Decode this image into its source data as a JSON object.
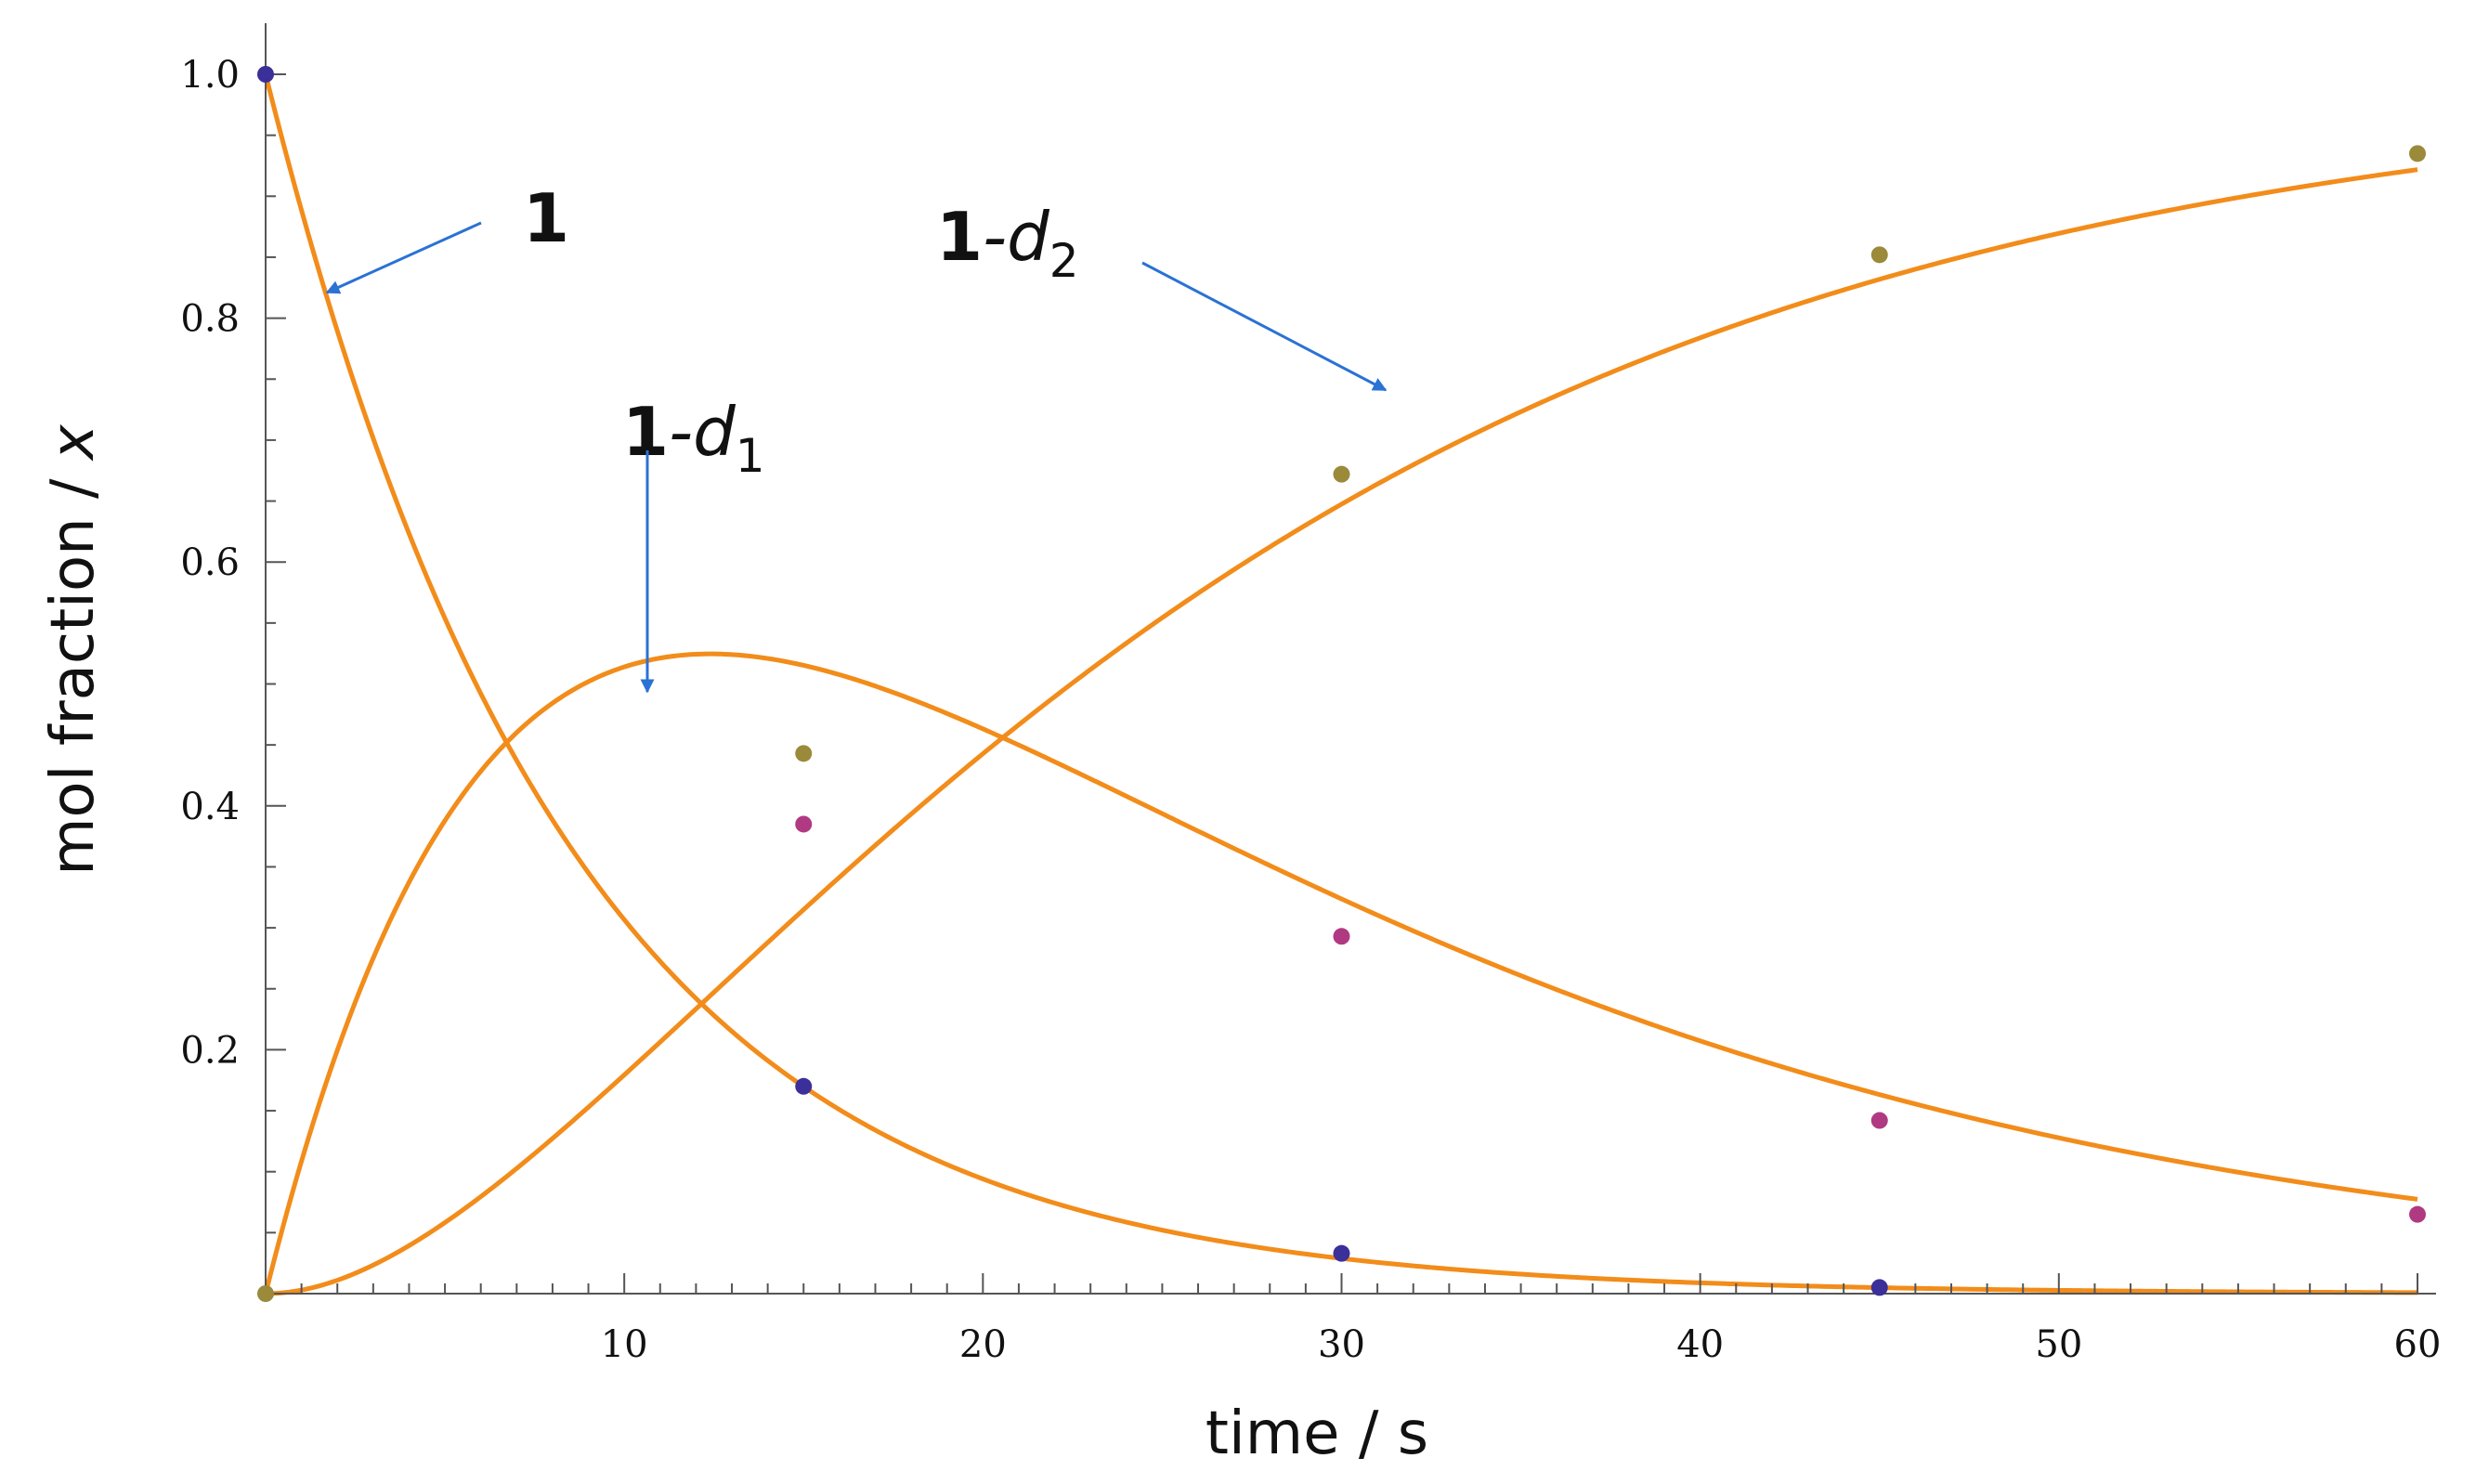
{
  "chart_data": {
    "type": "scatter",
    "xlabel": "time / s",
    "ylabel_text": "mol fraction / ",
    "ylabel_var": "x",
    "xlim": [
      0,
      60
    ],
    "ylim": [
      0,
      1.0
    ],
    "x_ticks": [
      10,
      20,
      30,
      40,
      50,
      60
    ],
    "y_ticks": [
      0.2,
      0.4,
      0.6,
      0.8,
      1.0
    ],
    "y_tick_labels": [
      "0.2",
      "0.4",
      "0.6",
      "0.8",
      "1.0"
    ],
    "x_tick_labels": [
      "10",
      "20",
      "30",
      "40",
      "50",
      "60"
    ],
    "x_minor_step": 1,
    "y_minor_step": 0.05,
    "grid": false,
    "fit_model": {
      "type": "sequential_first_order",
      "k1_per_s": 0.1182,
      "k2_per_s": 0.052
    },
    "series": [
      {
        "label_main": "1",
        "label_suffix": "",
        "label_sub": "",
        "marker_color": "#3b2f9a",
        "curve_color": "#f28c1a",
        "x": [
          0,
          15,
          30,
          45
        ],
        "y": [
          1.0,
          0.17,
          0.033,
          0.005
        ]
      },
      {
        "label_main": "1",
        "label_suffix": "-d",
        "label_sub": "1",
        "marker_color": "#b03a82",
        "curve_color": "#f28c1a",
        "x": [
          15,
          30,
          45,
          60
        ],
        "y": [
          0.385,
          0.293,
          0.142,
          0.065
        ]
      },
      {
        "label_main": "1",
        "label_suffix": "-d",
        "label_sub": "2",
        "marker_color": "#9a8a3a",
        "curve_color": "#f28c1a",
        "x": [
          0,
          15,
          30,
          45,
          60
        ],
        "y": [
          0.0,
          0.443,
          0.672,
          0.852,
          0.935
        ]
      }
    ],
    "arrow_color": "#2a72d4"
  }
}
